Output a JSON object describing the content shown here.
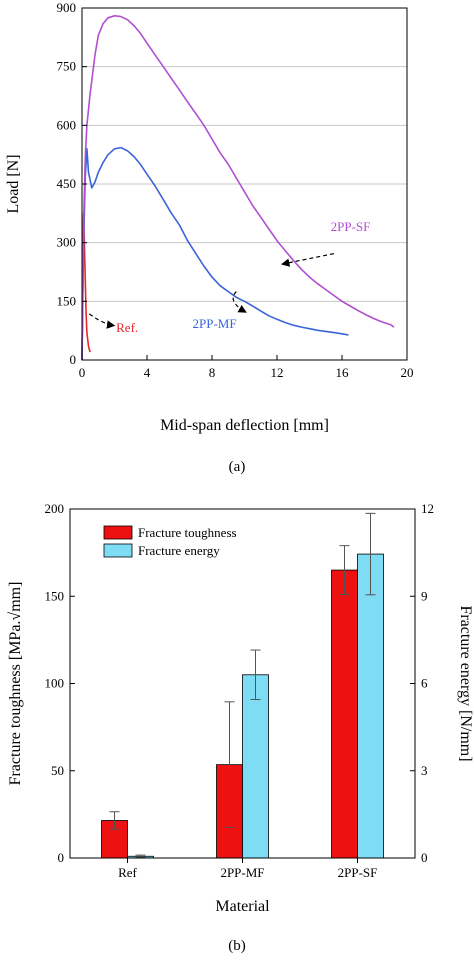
{
  "chart_data": [
    {
      "type": "line",
      "panel_label": "(a)",
      "xlabel": "Mid-span deflection [mm]",
      "ylabel": "Load [N]",
      "xlim": [
        0,
        20
      ],
      "ylim": [
        0,
        900
      ],
      "xticks": [
        0,
        4,
        8,
        12,
        16,
        20
      ],
      "yticks": [
        0,
        150,
        300,
        450,
        600,
        750,
        900
      ],
      "grid": "horizontal",
      "series": [
        {
          "name": "Ref.",
          "color": "#e8262a",
          "x": [
            0.0,
            0.05,
            0.1,
            0.15,
            0.2,
            0.25,
            0.3,
            0.4,
            0.5
          ],
          "y": [
            0,
            220,
            375,
            300,
            200,
            120,
            70,
            35,
            20
          ]
        },
        {
          "name": "2PP-MF",
          "color": "#3a64d8",
          "x": [
            0.0,
            0.1,
            0.2,
            0.3,
            0.4,
            0.6,
            0.8,
            1.0,
            1.3,
            1.6,
            2.0,
            2.4,
            2.8,
            3.2,
            3.6,
            4.0,
            4.5,
            5.0,
            5.5,
            6.0,
            6.5,
            7.0,
            7.5,
            8.0,
            8.5,
            9.0,
            9.5,
            10.0,
            10.5,
            11.0,
            11.5,
            12.0,
            12.5,
            13.0,
            13.5,
            14.0,
            14.5,
            15.0,
            15.5,
            16.0,
            16.4
          ],
          "y": [
            0,
            300,
            470,
            540,
            480,
            440,
            455,
            480,
            505,
            525,
            540,
            543,
            535,
            520,
            500,
            475,
            445,
            410,
            375,
            345,
            305,
            272,
            240,
            212,
            190,
            175,
            160,
            150,
            138,
            125,
            113,
            104,
            96,
            89,
            84,
            80,
            76,
            73,
            70,
            67,
            64
          ]
        },
        {
          "name": "2PP-SF",
          "color": "#b14fd0",
          "x": [
            0.0,
            0.1,
            0.2,
            0.3,
            0.5,
            0.8,
            1.0,
            1.3,
            1.6,
            2.0,
            2.4,
            2.8,
            3.2,
            3.6,
            4.0,
            4.5,
            5.0,
            5.5,
            6.0,
            6.5,
            7.0,
            7.5,
            8.0,
            8.5,
            9.0,
            9.5,
            10.0,
            10.5,
            11.0,
            11.5,
            12.0,
            12.5,
            13.0,
            13.5,
            14.0,
            14.5,
            15.0,
            15.5,
            16.0,
            16.5,
            17.0,
            17.5,
            18.0,
            18.5,
            19.0,
            19.2
          ],
          "y": [
            0,
            350,
            520,
            600,
            680,
            780,
            830,
            860,
            875,
            880,
            878,
            870,
            855,
            835,
            810,
            780,
            750,
            720,
            690,
            660,
            630,
            600,
            565,
            530,
            500,
            465,
            430,
            395,
            365,
            335,
            305,
            280,
            255,
            232,
            212,
            195,
            180,
            165,
            150,
            138,
            126,
            115,
            105,
            97,
            90,
            84
          ]
        }
      ],
      "annotations": [
        {
          "text": "2PP-SF",
          "target_series": "2PP-SF"
        },
        {
          "text": "2PP-MF",
          "target_series": "2PP-MF"
        },
        {
          "text": "Ref.",
          "target_series": "Ref."
        }
      ]
    },
    {
      "type": "bar",
      "panel_label": "(b)",
      "xlabel": "Material",
      "ylabel": "Fracture toughness [MPa.√mm]",
      "ylabel_right": "Fracture energy [N/mm]",
      "categories": [
        "Ref",
        "2PP-MF",
        "2PP-SF"
      ],
      "ylim": [
        0,
        200
      ],
      "ylim_right": [
        0,
        12
      ],
      "yticks": [
        0,
        50,
        100,
        150,
        200
      ],
      "yticks_right": [
        0,
        3,
        6,
        9,
        12
      ],
      "legend_position": "top-left",
      "series": [
        {
          "name": "Fracture toughness",
          "axis": "left",
          "color": "#ee1111",
          "values": [
            21.5,
            53.5,
            165
          ],
          "errors": [
            5,
            36,
            14
          ]
        },
        {
          "name": "Fracture energy",
          "axis": "right",
          "color": "#7fdcf5",
          "values": [
            0.06,
            6.3,
            10.45
          ],
          "errors": [
            0.04,
            0.85,
            1.4
          ]
        }
      ]
    }
  ]
}
